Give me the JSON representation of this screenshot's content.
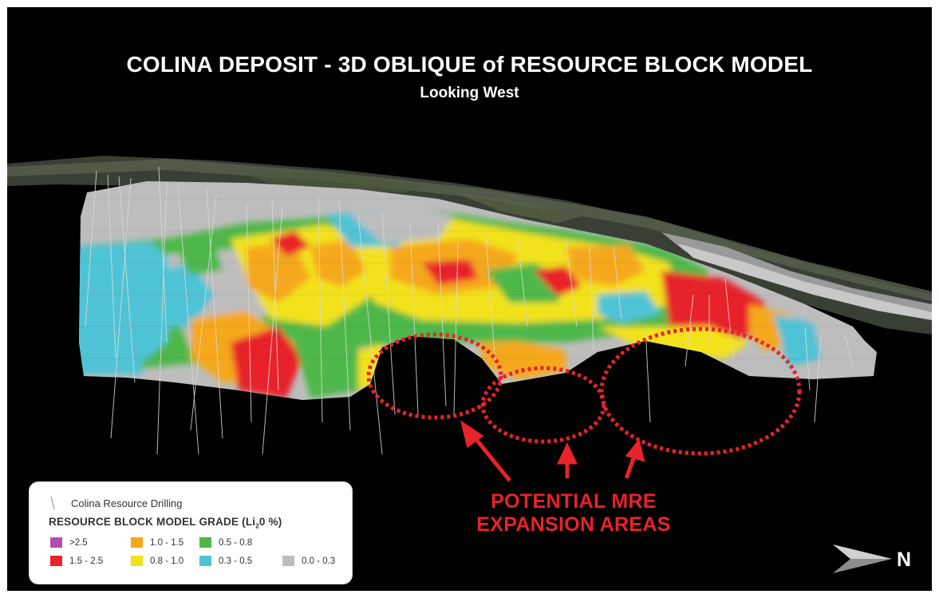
{
  "title": "COLINA DEPOSIT - 3D OBLIQUE of RESOURCE BLOCK MODEL",
  "subtitle": "Looking West",
  "callout": {
    "line1": "POTENTIAL MRE",
    "line2": "EXPANSION AREAS"
  },
  "north_label": "N",
  "legend": {
    "drilling_label": "Colina Resource Drilling",
    "grade_title": "RESOURCE BLOCK MODEL GRADE (Li",
    "grade_title_sub": "2",
    "grade_title_end": "0 %)",
    "bins": [
      {
        "label": ">2.5",
        "color": "#b04fb0"
      },
      {
        "label": "1.5 - 2.5",
        "color": "#e8232a"
      },
      {
        "label": "1.0 - 1.5",
        "color": "#f5a81c"
      },
      {
        "label": "0.8 - 1.0",
        "color": "#f2e21a"
      },
      {
        "label": "0.5 - 0.8",
        "color": "#4db848"
      },
      {
        "label": "0.3 - 0.5",
        "color": "#4fc3d6"
      },
      {
        "label": "0.0 - 0.3",
        "color": "#bdbdbd"
      }
    ]
  },
  "colors": {
    "background": "#000000",
    "callout_red": "#e8232a",
    "drill_trace": "#d9d9d9"
  }
}
